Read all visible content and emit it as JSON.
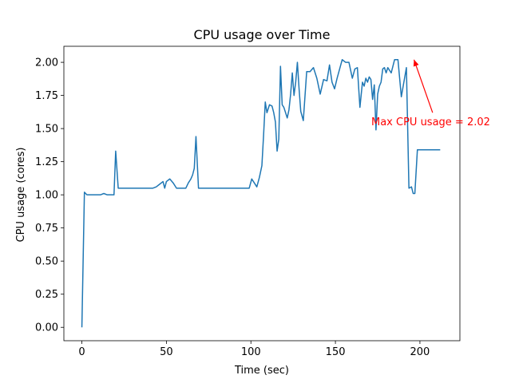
{
  "chart_data": {
    "type": "line",
    "title": "CPU usage over Time",
    "xlabel": "Time (sec)",
    "ylabel": "CPU usage (cores)",
    "xlim": [
      -10.65,
      223.65
    ],
    "ylim": [
      -0.101,
      2.121
    ],
    "xticks": [
      0,
      50,
      100,
      150,
      200
    ],
    "yticks": [
      0.0,
      0.25,
      0.5,
      0.75,
      1.0,
      1.25,
      1.5,
      1.75,
      2.0
    ],
    "ytick_labels": [
      "0.00",
      "0.25",
      "0.50",
      "0.75",
      "1.00",
      "1.25",
      "1.50",
      "1.75",
      "2.00"
    ],
    "grid": false,
    "series": [
      {
        "color": "#1f77b4",
        "x": [
          0,
          1.5,
          3,
          5,
          7,
          9,
          11,
          13,
          15,
          17,
          19,
          20,
          21.5,
          24,
          27,
          30,
          33,
          35,
          37,
          39,
          42,
          44,
          46,
          48,
          49,
          50,
          52,
          54,
          56,
          58,
          60,
          61.5,
          63,
          64.5,
          65.5,
          66.5,
          67.5,
          69,
          71,
          73,
          75,
          77,
          79,
          81,
          83,
          85,
          87,
          89,
          91,
          93,
          95,
          97,
          99,
          100.5,
          102,
          103.5,
          105,
          106.5,
          107.5,
          108.5,
          109.5,
          111,
          112.5,
          113.5,
          114.5,
          115.5,
          116.5,
          117.5,
          118.5,
          119.5,
          120.5,
          121.5,
          122.5,
          123.5,
          124.5,
          125.5,
          126.5,
          127.5,
          128.5,
          129.5,
          131,
          133,
          135,
          137,
          139,
          141,
          143,
          145,
          146.5,
          148,
          149.5,
          151,
          152.5,
          154,
          156,
          158,
          160,
          161.5,
          163,
          164.5,
          166,
          167,
          168,
          169,
          170,
          171,
          172,
          173,
          174,
          175,
          176,
          177,
          178,
          179,
          180,
          181,
          183,
          185,
          187,
          189,
          190.5,
          192,
          193.5,
          195,
          196,
          197,
          198.5,
          200,
          201.5,
          203,
          204,
          205,
          206,
          207.5,
          209,
          210.5,
          212
        ],
        "y": [
          0.0,
          1.02,
          1.0,
          1.0,
          1.0,
          1.0,
          1.0,
          1.01,
          1.0,
          1.0,
          1.0,
          1.33,
          1.05,
          1.05,
          1.05,
          1.05,
          1.05,
          1.05,
          1.05,
          1.05,
          1.05,
          1.06,
          1.08,
          1.1,
          1.05,
          1.1,
          1.12,
          1.09,
          1.05,
          1.05,
          1.05,
          1.05,
          1.09,
          1.12,
          1.15,
          1.2,
          1.44,
          1.05,
          1.05,
          1.05,
          1.05,
          1.05,
          1.05,
          1.05,
          1.05,
          1.05,
          1.05,
          1.05,
          1.05,
          1.05,
          1.05,
          1.05,
          1.05,
          1.12,
          1.09,
          1.06,
          1.13,
          1.22,
          1.45,
          1.7,
          1.62,
          1.68,
          1.67,
          1.62,
          1.55,
          1.33,
          1.42,
          1.97,
          1.68,
          1.66,
          1.62,
          1.58,
          1.64,
          1.76,
          1.92,
          1.75,
          1.85,
          2.0,
          1.8,
          1.63,
          1.56,
          1.93,
          1.93,
          1.96,
          1.88,
          1.76,
          1.87,
          1.86,
          1.98,
          1.85,
          1.8,
          1.88,
          1.95,
          2.02,
          2.0,
          2.0,
          1.88,
          1.95,
          1.96,
          1.66,
          1.85,
          1.82,
          1.88,
          1.85,
          1.89,
          1.87,
          1.72,
          1.83,
          1.49,
          1.76,
          1.82,
          1.85,
          1.95,
          1.96,
          1.92,
          1.96,
          1.92,
          2.02,
          2.02,
          1.74,
          1.85,
          1.96,
          1.05,
          1.06,
          1.01,
          1.01,
          1.34,
          1.34,
          1.34,
          1.34,
          1.34,
          1.34,
          1.34,
          1.34,
          1.34,
          1.34,
          1.34
        ]
      }
    ],
    "annotation": {
      "text": "Max CPU usage = 2.02",
      "color": "#ff0000",
      "point": [
        196.5,
        2.02
      ],
      "text_anchor_point": [
        207.5,
        1.62
      ]
    }
  }
}
